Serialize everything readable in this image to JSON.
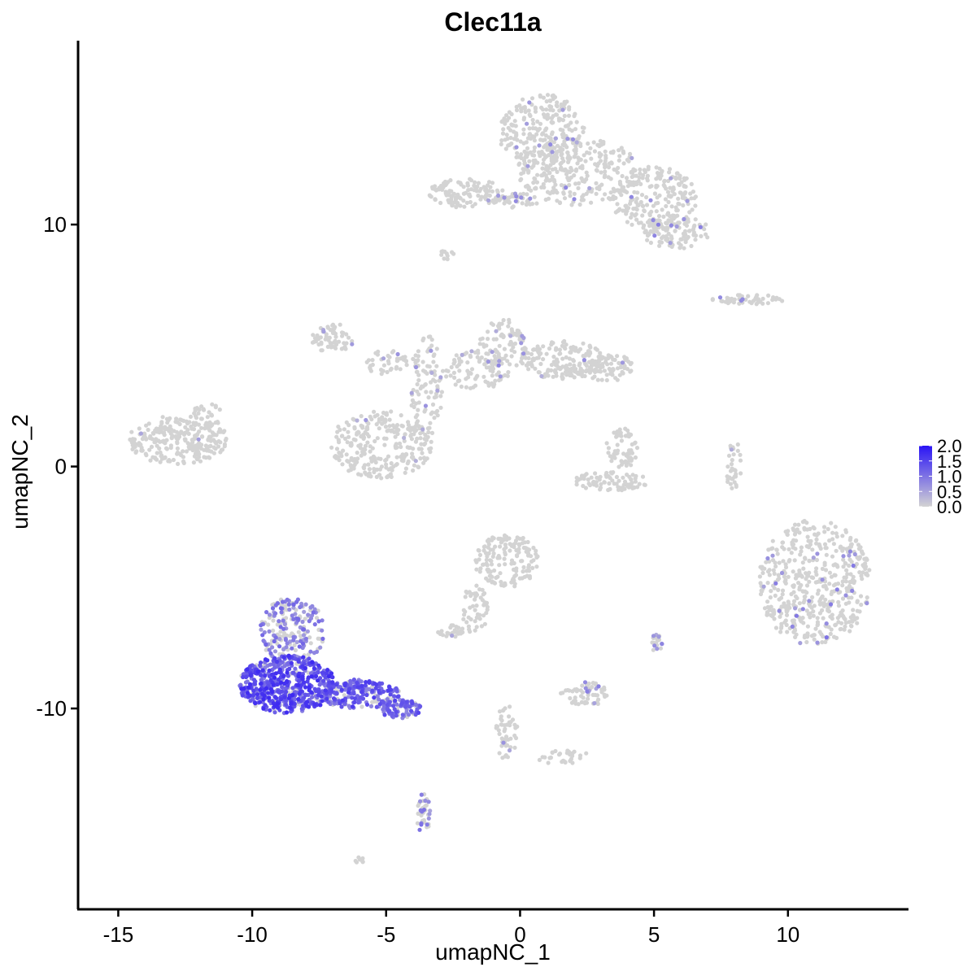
{
  "chart_data": {
    "type": "scatter",
    "title": "Clec11a",
    "xlabel": "umapNC_1",
    "ylabel": "umapNC_2",
    "xlim": [
      -16.5,
      14.5
    ],
    "ylim": [
      -18.3,
      17.6
    ],
    "x_ticks": [
      -15,
      -10,
      -5,
      0,
      5,
      10
    ],
    "x_tick_labels": [
      "-15",
      "-10",
      "-5",
      "0",
      "5",
      "10"
    ],
    "y_ticks": [
      -10,
      0,
      10
    ],
    "y_tick_labels": [
      "-10",
      "0",
      "10"
    ],
    "grid": false,
    "legend": {
      "position": "right",
      "type": "colorbar",
      "range": [
        0,
        2.0
      ],
      "ticks": [
        0,
        0.5,
        1.0,
        1.5,
        2.0
      ],
      "tick_labels": [
        "0.0",
        "0.5",
        "1.0",
        "1.5",
        "2.0"
      ],
      "low_color": "#d3d3d3",
      "high_color": "#2a14f5"
    },
    "clusters": [
      {
        "cx": 0.8,
        "cy": 13.8,
        "rx": 1.6,
        "ry": 1.6,
        "n": 240,
        "expr": 0.03,
        "level": 0.7
      },
      {
        "cx": 2.2,
        "cy": 12.2,
        "rx": 2.3,
        "ry": 1.4,
        "n": 280,
        "expr": 0.03,
        "level": 0.7
      },
      {
        "cx": 5.0,
        "cy": 11.1,
        "rx": 1.6,
        "ry": 1.3,
        "n": 200,
        "expr": 0.04,
        "level": 0.8
      },
      {
        "cx": 5.8,
        "cy": 9.7,
        "rx": 1.3,
        "ry": 0.7,
        "n": 110,
        "expr": 0.04,
        "level": 0.8
      },
      {
        "cx": -2.0,
        "cy": 11.3,
        "rx": 1.4,
        "ry": 0.6,
        "n": 120,
        "expr": 0.02,
        "level": 0.6
      },
      {
        "cx": -0.2,
        "cy": 11.0,
        "rx": 1.0,
        "ry": 0.3,
        "n": 50,
        "expr": 0.05,
        "level": 0.7
      },
      {
        "cx": -2.7,
        "cy": 8.8,
        "rx": 0.3,
        "ry": 0.25,
        "n": 12,
        "expr": 0.0,
        "level": 0.0
      },
      {
        "cx": 8.5,
        "cy": 6.9,
        "rx": 1.4,
        "ry": 0.2,
        "n": 50,
        "expr": 0.06,
        "level": 0.8
      },
      {
        "cx": -12.8,
        "cy": 1.1,
        "rx": 1.9,
        "ry": 1.0,
        "n": 260,
        "expr": 0.004,
        "level": 0.5
      },
      {
        "cx": -11.7,
        "cy": 2.1,
        "rx": 0.6,
        "ry": 0.5,
        "n": 30,
        "expr": 0.0,
        "level": 0.0
      },
      {
        "cx": -7.0,
        "cy": 5.3,
        "rx": 0.8,
        "ry": 0.6,
        "n": 60,
        "expr": 0.03,
        "level": 0.6
      },
      {
        "cx": -5.0,
        "cy": 4.3,
        "rx": 0.8,
        "ry": 0.5,
        "n": 40,
        "expr": 0.04,
        "level": 0.6
      },
      {
        "cx": -5.2,
        "cy": 0.9,
        "rx": 1.9,
        "ry": 1.4,
        "n": 260,
        "expr": 0.02,
        "level": 0.6
      },
      {
        "cx": -3.5,
        "cy": 3.2,
        "rx": 0.6,
        "ry": 2.3,
        "n": 110,
        "expr": 0.03,
        "level": 0.6
      },
      {
        "cx": -1.6,
        "cy": 4.0,
        "rx": 1.3,
        "ry": 0.8,
        "n": 90,
        "expr": 0.03,
        "level": 0.6
      },
      {
        "cx": -0.6,
        "cy": 5.1,
        "rx": 0.9,
        "ry": 1.1,
        "n": 90,
        "expr": 0.05,
        "level": 0.7
      },
      {
        "cx": 1.6,
        "cy": 4.4,
        "rx": 1.6,
        "ry": 0.8,
        "n": 180,
        "expr": 0.03,
        "level": 0.7
      },
      {
        "cx": 3.3,
        "cy": 4.1,
        "rx": 0.9,
        "ry": 0.6,
        "n": 70,
        "expr": 0.02,
        "level": 0.6
      },
      {
        "cx": 3.8,
        "cy": 0.7,
        "rx": 0.6,
        "ry": 0.9,
        "n": 60,
        "expr": 0.0,
        "level": 0.0
      },
      {
        "cx": 3.4,
        "cy": -0.6,
        "rx": 1.4,
        "ry": 0.4,
        "n": 80,
        "expr": 0.01,
        "level": 0.7
      },
      {
        "cx": 8.0,
        "cy": 0.0,
        "rx": 0.3,
        "ry": 1.2,
        "n": 35,
        "expr": 0.03,
        "level": 0.6
      },
      {
        "cx": 11.0,
        "cy": -4.8,
        "rx": 2.1,
        "ry": 2.6,
        "n": 500,
        "expr": 0.06,
        "level": 0.9
      },
      {
        "cx": -0.5,
        "cy": -3.9,
        "rx": 1.2,
        "ry": 1.1,
        "n": 150,
        "expr": 0.0,
        "level": 0.0
      },
      {
        "cx": -1.7,
        "cy": -5.9,
        "rx": 0.5,
        "ry": 1.0,
        "n": 50,
        "expr": 0.0,
        "level": 0.0
      },
      {
        "cx": -2.6,
        "cy": -6.8,
        "rx": 0.5,
        "ry": 0.25,
        "n": 25,
        "expr": 0.05,
        "level": 0.6
      },
      {
        "cx": 2.4,
        "cy": -9.4,
        "rx": 0.9,
        "ry": 0.5,
        "n": 60,
        "expr": 0.1,
        "level": 0.8
      },
      {
        "cx": 5.1,
        "cy": -7.3,
        "rx": 0.2,
        "ry": 0.4,
        "n": 20,
        "expr": 0.25,
        "level": 0.8
      },
      {
        "cx": -0.5,
        "cy": -11.0,
        "rx": 0.4,
        "ry": 1.2,
        "n": 50,
        "expr": 0.1,
        "level": 0.8
      },
      {
        "cx": 1.6,
        "cy": -12.0,
        "rx": 1.0,
        "ry": 0.3,
        "n": 30,
        "expr": 0.03,
        "level": 0.7
      },
      {
        "cx": -3.6,
        "cy": -14.4,
        "rx": 0.25,
        "ry": 0.9,
        "n": 40,
        "expr": 0.3,
        "level": 0.9
      },
      {
        "cx": -8.5,
        "cy": -6.8,
        "rx": 1.2,
        "ry": 1.4,
        "n": 220,
        "expr": 0.55,
        "level": 1.0
      },
      {
        "cx": -8.7,
        "cy": -9.0,
        "rx": 1.8,
        "ry": 1.2,
        "n": 600,
        "expr": 0.85,
        "level": 1.55
      },
      {
        "cx": -6.0,
        "cy": -9.4,
        "rx": 1.5,
        "ry": 0.6,
        "n": 200,
        "expr": 0.85,
        "level": 1.4
      },
      {
        "cx": -4.5,
        "cy": -10.0,
        "rx": 0.8,
        "ry": 0.4,
        "n": 80,
        "expr": 0.85,
        "level": 1.3
      },
      {
        "cx": -6.0,
        "cy": -16.3,
        "rx": 0.2,
        "ry": 0.15,
        "n": 8,
        "expr": 0.0,
        "level": 0.0
      }
    ]
  }
}
